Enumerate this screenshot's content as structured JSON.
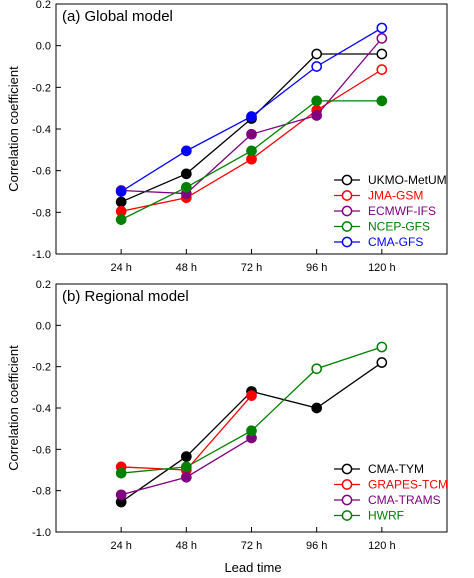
{
  "chart_data": [
    {
      "type": "line",
      "panel_label": "(a) Global model",
      "ylabel": "Correlation coefficient",
      "xlabel": "",
      "categories": [
        "24 h",
        "48 h",
        "72 h",
        "96 h",
        "120 h"
      ],
      "ylim": [
        -1.0,
        0.2
      ],
      "yticks": [
        "-1.0",
        "-0.8",
        "-0.6",
        "-0.4",
        "-0.2",
        "0.0",
        "0.2"
      ],
      "legend_position": "bottom-right",
      "grid": false,
      "series": [
        {
          "name": "UKMO-MetUM",
          "color": "#000000",
          "values": [
            -0.75,
            -0.615,
            -0.35,
            -0.04,
            -0.04
          ],
          "marker_fill": [
            true,
            true,
            true,
            false,
            false
          ]
        },
        {
          "name": "JMA-GSM",
          "color": "#ff0000",
          "values": [
            -0.795,
            -0.73,
            -0.545,
            -0.31,
            -0.115
          ],
          "marker_fill": [
            true,
            true,
            true,
            true,
            false
          ]
        },
        {
          "name": "ECMWF-IFS",
          "color": "#800080",
          "values": [
            -0.695,
            -0.71,
            -0.425,
            -0.335,
            0.035
          ],
          "marker_fill": [
            true,
            true,
            true,
            true,
            false
          ]
        },
        {
          "name": "NCEP-GFS",
          "color": "#008000",
          "values": [
            -0.835,
            -0.68,
            -0.505,
            -0.265,
            -0.265
          ],
          "marker_fill": [
            true,
            true,
            true,
            true,
            true
          ]
        },
        {
          "name": "CMA-GFS",
          "color": "#0000ff",
          "values": [
            -0.7,
            -0.505,
            -0.34,
            -0.1,
            0.085
          ],
          "marker_fill": [
            true,
            true,
            true,
            false,
            false
          ]
        }
      ]
    },
    {
      "type": "line",
      "panel_label": "(b) Regional model",
      "ylabel": "Correlation coefficient",
      "xlabel": "Lead time",
      "categories": [
        "24 h",
        "48 h",
        "72 h",
        "96 h",
        "120 h"
      ],
      "ylim": [
        -1.0,
        0.2
      ],
      "yticks": [
        "-1.0",
        "-0.8",
        "-0.6",
        "-0.4",
        "-0.2",
        "0.0",
        "0.2"
      ],
      "legend_position": "bottom-right",
      "grid": false,
      "series": [
        {
          "name": "CMA-TYM",
          "color": "#000000",
          "values": [
            -0.855,
            -0.635,
            -0.32,
            -0.4,
            -0.18
          ],
          "marker_fill": [
            true,
            true,
            true,
            true,
            false
          ]
        },
        {
          "name": "GRAPES-TCM",
          "color": "#ff0000",
          "values": [
            -0.685,
            -0.7,
            -0.34,
            null,
            null
          ],
          "marker_fill": [
            true,
            true,
            true,
            false,
            false
          ]
        },
        {
          "name": "CMA-TRAMS",
          "color": "#800080",
          "values": [
            -0.82,
            -0.735,
            -0.545,
            null,
            null
          ],
          "marker_fill": [
            true,
            true,
            true,
            false,
            false
          ]
        },
        {
          "name": "HWRF",
          "color": "#008000",
          "values": [
            -0.715,
            -0.685,
            -0.51,
            -0.21,
            -0.105
          ],
          "marker_fill": [
            true,
            true,
            true,
            false,
            false
          ]
        }
      ]
    }
  ]
}
